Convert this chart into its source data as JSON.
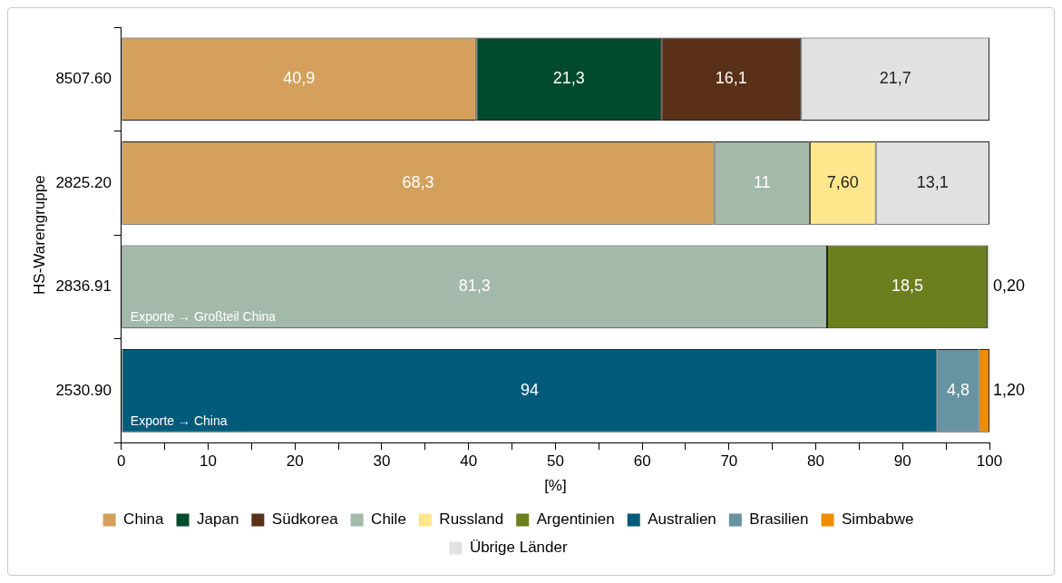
{
  "chart_data": {
    "type": "bar",
    "orientation": "horizontal",
    "stacked": true,
    "ylabel": "HS-Warengruppe",
    "xlabel": "[%]",
    "categories": [
      "8507.60",
      "2825.20",
      "2836.91",
      "2530.90"
    ],
    "xlim": [
      0,
      100
    ],
    "xticks": [
      0,
      {
        "value": 5,
        "label": null
      },
      10,
      {
        "value": 15,
        "label": null
      },
      20,
      {
        "value": 25,
        "label": null
      },
      30,
      {
        "value": 35,
        "label": null
      },
      40,
      {
        "value": 45,
        "label": null
      },
      50,
      {
        "value": 55,
        "label": null
      },
      60,
      {
        "value": 65,
        "label": null
      },
      70,
      {
        "value": 75,
        "label": null
      },
      80,
      {
        "value": 85,
        "label": null
      },
      90,
      {
        "value": 95,
        "label": null
      },
      100
    ],
    "grid": false,
    "legend": "bottom",
    "series": [
      {
        "name": "China",
        "color": "#d4a05c",
        "values": [
          40.9,
          68.3,
          null,
          null
        ],
        "value_labels": [
          "40,9",
          "68,3",
          null,
          null
        ]
      },
      {
        "name": "Japan",
        "color": "#004b2d",
        "values": [
          21.3,
          null,
          null,
          null
        ],
        "value_labels": [
          "21,3",
          null,
          null,
          null
        ]
      },
      {
        "name": "Südkorea",
        "color": "#5a3019",
        "values": [
          16.1,
          null,
          null,
          null
        ],
        "value_labels": [
          "16,1",
          null,
          null,
          null
        ]
      },
      {
        "name": "Chile",
        "color": "#a3b9a9",
        "values": [
          null,
          11,
          81.3,
          null
        ],
        "value_labels": [
          null,
          "11",
          "81,3",
          null
        ]
      },
      {
        "name": "Russland",
        "color": "#fde68c",
        "values": [
          null,
          7.6,
          null,
          null
        ],
        "value_labels": [
          null,
          "7,60",
          null,
          null
        ]
      },
      {
        "name": "Argentinien",
        "color": "#6b7f1e",
        "values": [
          null,
          null,
          18.5,
          null
        ],
        "value_labels": [
          null,
          null,
          "18,5",
          null
        ]
      },
      {
        "name": "Australien",
        "color": "#005a7a",
        "values": [
          null,
          null,
          null,
          94
        ],
        "value_labels": [
          null,
          null,
          null,
          "94"
        ]
      },
      {
        "name": "Brasilien",
        "color": "#6893a3",
        "values": [
          null,
          null,
          null,
          4.8
        ],
        "value_labels": [
          null,
          null,
          null,
          "4,8"
        ]
      },
      {
        "name": "Simbabwe",
        "color": "#f08c00",
        "values": [
          null,
          null,
          null,
          1.2
        ],
        "value_labels": [
          null,
          null,
          null,
          "1,20"
        ]
      },
      {
        "name": "Übrige Länder",
        "color": "#e1e1e1",
        "values": [
          21.7,
          13.1,
          0.2,
          null
        ],
        "value_labels": [
          "21,7",
          "13,1",
          "0,20",
          null
        ]
      }
    ],
    "annotations": [
      {
        "text": "Exporte → Großteil China",
        "x": 0,
        "y": "2836.91"
      },
      {
        "text": "Exporte → China",
        "x": 0,
        "y": "2530.90"
      }
    ]
  }
}
